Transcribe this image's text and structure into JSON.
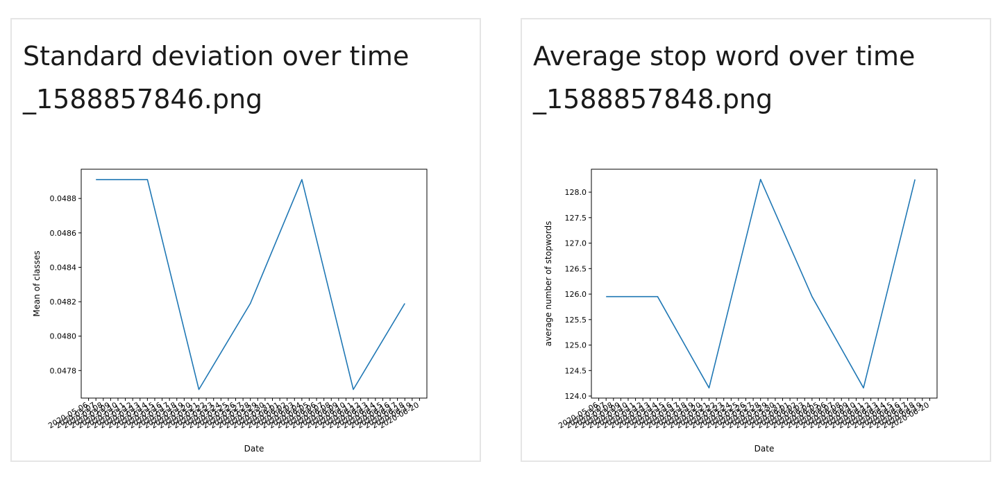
{
  "cards": [
    {
      "title_line1": "Standard deviation over time",
      "title_line2": "_1588857846.png"
    },
    {
      "title_line1": "Average stop word over time",
      "title_line2": "_1588857848.png"
    }
  ],
  "chart_data": [
    {
      "type": "line",
      "title": "",
      "xlabel": "Date",
      "ylabel": "Mean of classes",
      "x": [
        "2020-05-06",
        "2020-05-07",
        "2020-05-08",
        "2020-05-09",
        "2020-05-10",
        "2020-05-11",
        "2020-05-12",
        "2020-05-13",
        "2020-05-14",
        "2020-05-15",
        "2020-05-16",
        "2020-05-17",
        "2020-05-18",
        "2020-05-19",
        "2020-05-20",
        "2020-05-21",
        "2020-05-22",
        "2020-05-23",
        "2020-05-24",
        "2020-05-25",
        "2020-05-26",
        "2020-05-27",
        "2020-05-28",
        "2020-05-29",
        "2020-05-30",
        "2020-05-31",
        "2020-06-01",
        "2020-06-02",
        "2020-06-03",
        "2020-06-04",
        "2020-06-05",
        "2020-06-06",
        "2020-06-07",
        "2020-06-08",
        "2020-06-09",
        "2020-06-10",
        "2020-06-11",
        "2020-06-12",
        "2020-06-13",
        "2020-06-14",
        "2020-06-15",
        "2020-06-16",
        "2020-06-17",
        "2020-06-18",
        "2020-06-19",
        "2020-06-20"
      ],
      "series": [
        {
          "points": [
            {
              "x": "2020-05-07",
              "y": 0.04891
            },
            {
              "x": "2020-05-14",
              "y": 0.04891
            },
            {
              "x": "2020-05-21",
              "y": 0.04769
            },
            {
              "x": "2020-05-28",
              "y": 0.04819
            },
            {
              "x": "2020-06-04",
              "y": 0.04891
            },
            {
              "x": "2020-06-11",
              "y": 0.04769
            },
            {
              "x": "2020-06-18",
              "y": 0.04819
            }
          ],
          "color": "#1f77b4"
        }
      ],
      "xlim": [
        "2020-05-05",
        "2020-06-21"
      ],
      "ylim": [
        0.04764,
        0.04897
      ],
      "yticks": [
        0.0478,
        0.048,
        0.0482,
        0.0484,
        0.0486,
        0.0488
      ],
      "ytick_labels": [
        "0.0478",
        "0.0480",
        "0.0482",
        "0.0484",
        "0.0486",
        "0.0488"
      ],
      "grid": false
    },
    {
      "type": "line",
      "title": "",
      "xlabel": "Date",
      "ylabel": "average number of stopwords",
      "x": [
        "2020-05-06",
        "2020-05-07",
        "2020-05-08",
        "2020-05-09",
        "2020-05-10",
        "2020-05-11",
        "2020-05-12",
        "2020-05-13",
        "2020-05-14",
        "2020-05-15",
        "2020-05-16",
        "2020-05-17",
        "2020-05-18",
        "2020-05-19",
        "2020-05-20",
        "2020-05-21",
        "2020-05-22",
        "2020-05-23",
        "2020-05-24",
        "2020-05-25",
        "2020-05-26",
        "2020-05-27",
        "2020-05-28",
        "2020-05-29",
        "2020-05-30",
        "2020-05-31",
        "2020-06-01",
        "2020-06-02",
        "2020-06-03",
        "2020-06-04",
        "2020-06-05",
        "2020-06-06",
        "2020-06-07",
        "2020-06-08",
        "2020-06-09",
        "2020-06-10",
        "2020-06-11",
        "2020-06-12",
        "2020-06-13",
        "2020-06-14",
        "2020-06-15",
        "2020-06-16",
        "2020-06-17",
        "2020-06-18",
        "2020-06-19",
        "2020-06-20"
      ],
      "series": [
        {
          "points": [
            {
              "x": "2020-05-07",
              "y": 125.95
            },
            {
              "x": "2020-05-14",
              "y": 125.95
            },
            {
              "x": "2020-05-21",
              "y": 124.16
            },
            {
              "x": "2020-05-28",
              "y": 128.25
            },
            {
              "x": "2020-06-04",
              "y": 125.95
            },
            {
              "x": "2020-06-11",
              "y": 124.16
            },
            {
              "x": "2020-06-18",
              "y": 128.25
            }
          ],
          "color": "#1f77b4"
        }
      ],
      "xlim": [
        "2020-05-05",
        "2020-06-21"
      ],
      "ylim": [
        123.96,
        128.45
      ],
      "yticks": [
        124.0,
        124.5,
        125.0,
        125.5,
        126.0,
        126.5,
        127.0,
        127.5,
        128.0
      ],
      "ytick_labels": [
        "124.0",
        "124.5",
        "125.0",
        "125.5",
        "126.0",
        "126.5",
        "127.0",
        "127.5",
        "128.0"
      ],
      "grid": false
    }
  ]
}
